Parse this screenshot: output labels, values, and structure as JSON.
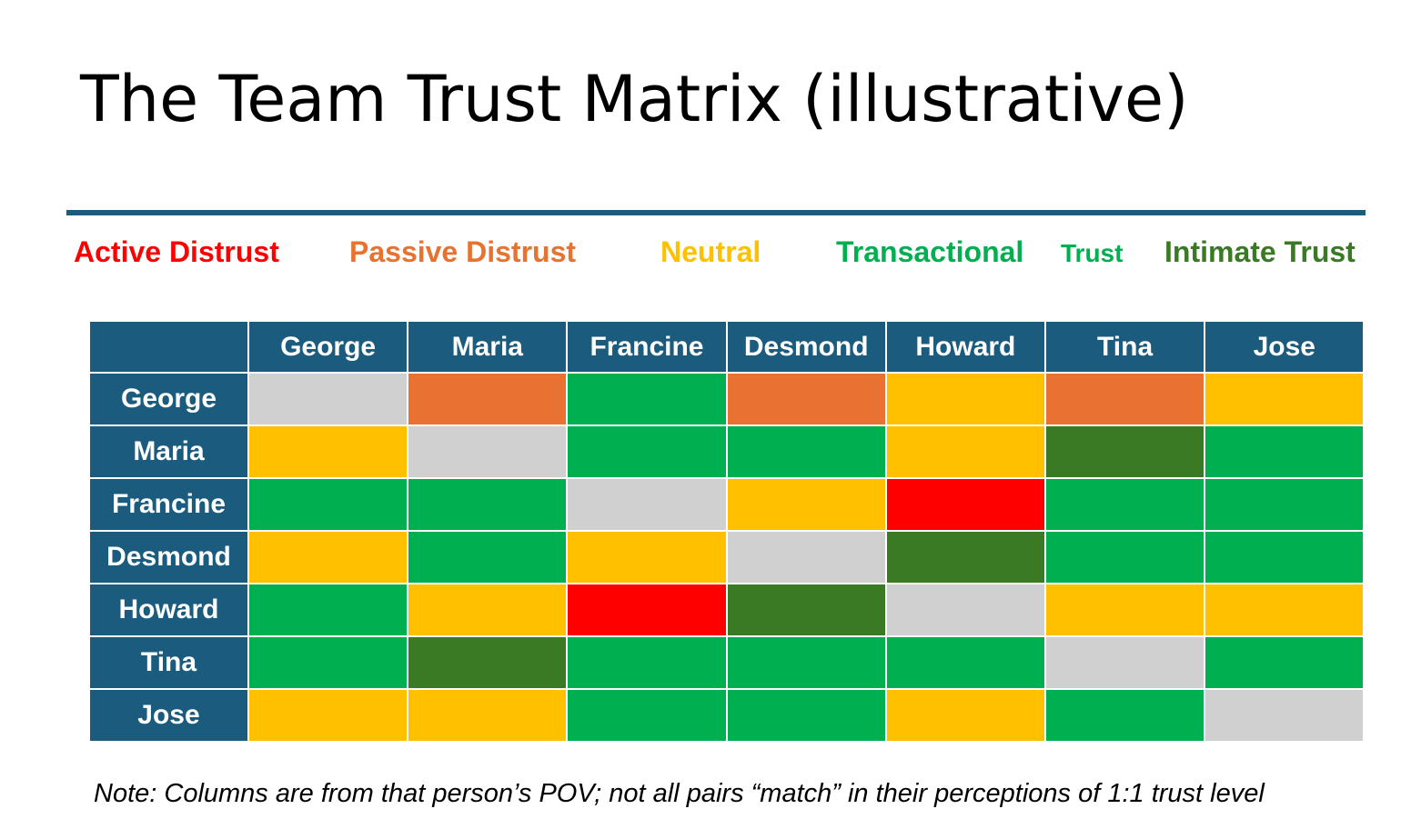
{
  "title": "The Team Trust Matrix (illustrative)",
  "legend": {
    "active": "Active Distrust",
    "passive": "Passive Distrust",
    "neutral": "Neutral",
    "transactional": "Transactional",
    "transactional_trust": "Trust",
    "intimate": "Intimate Trust"
  },
  "colors": {
    "self": "#d0d0d0",
    "active": "#ff0000",
    "passive": "#e97132",
    "neutral": "#ffc000",
    "transactional": "#00b050",
    "intimate": "#3a7a24",
    "header": "#1b5c7e"
  },
  "chart_data": {
    "type": "heatmap",
    "title": "The Team Trust Matrix (illustrative)",
    "columns": [
      "George",
      "Maria",
      "Francine",
      "Desmond",
      "Howard",
      "Tina",
      "Jose"
    ],
    "rows": [
      "George",
      "Maria",
      "Francine",
      "Desmond",
      "Howard",
      "Tina",
      "Jose"
    ],
    "categories": [
      "Active Distrust",
      "Passive Distrust",
      "Neutral",
      "Transactional Trust",
      "Intimate Trust"
    ],
    "values": [
      [
        "self",
        "passive",
        "transactional",
        "passive",
        "neutral",
        "passive",
        "neutral"
      ],
      [
        "neutral",
        "self",
        "transactional",
        "transactional",
        "neutral",
        "intimate",
        "transactional"
      ],
      [
        "transactional",
        "transactional",
        "self",
        "neutral",
        "active",
        "transactional",
        "transactional"
      ],
      [
        "neutral",
        "transactional",
        "neutral",
        "self",
        "intimate",
        "transactional",
        "transactional"
      ],
      [
        "transactional",
        "neutral",
        "active",
        "intimate",
        "self",
        "neutral",
        "neutral"
      ],
      [
        "transactional",
        "intimate",
        "transactional",
        "transactional",
        "transactional",
        "self",
        "transactional"
      ],
      [
        "neutral",
        "neutral",
        "transactional",
        "transactional",
        "neutral",
        "transactional",
        "self"
      ]
    ]
  },
  "note": "Note: Columns are from that person’s POV; not all pairs “match” in their perceptions of 1:1 trust level"
}
